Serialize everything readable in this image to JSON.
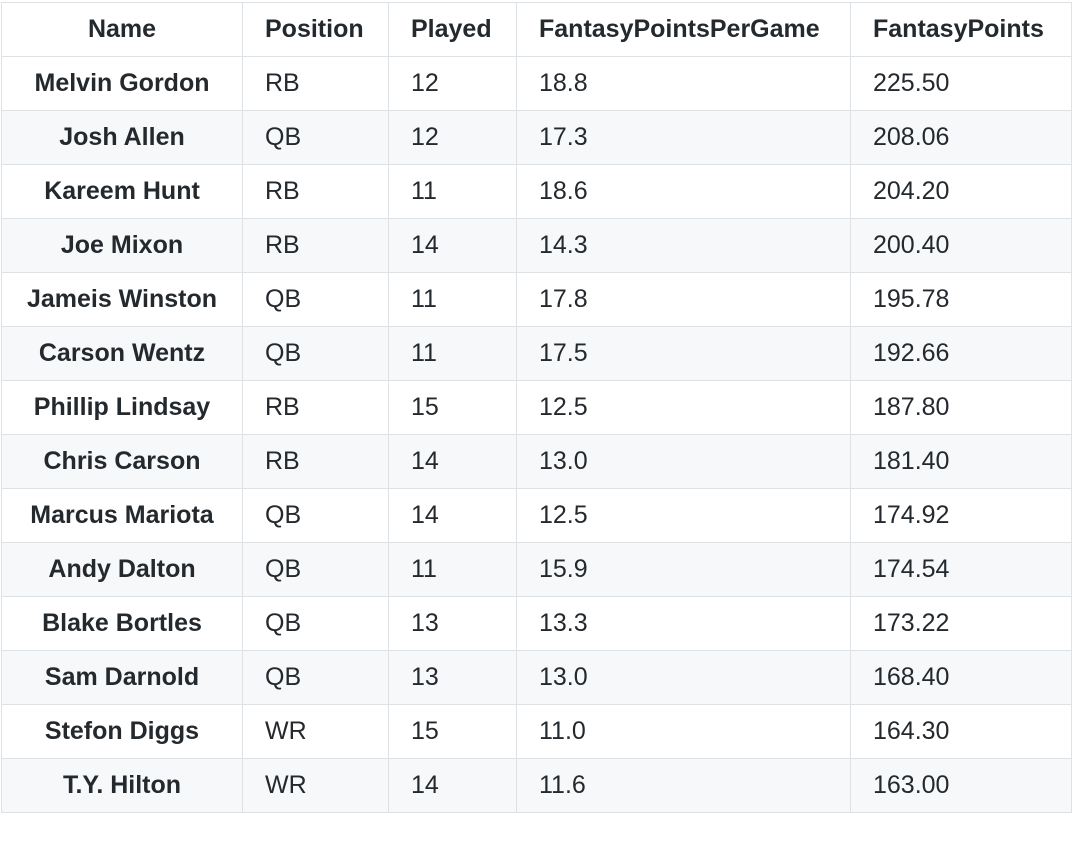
{
  "table": {
    "headers": {
      "name": "Name",
      "position": "Position",
      "played": "Played",
      "fppg": "FantasyPointsPerGame",
      "fp": "FantasyPoints"
    },
    "rows": [
      {
        "name": "Melvin Gordon",
        "position": "RB",
        "played": "12",
        "fppg": "18.8",
        "fp": "225.50"
      },
      {
        "name": "Josh Allen",
        "position": "QB",
        "played": "12",
        "fppg": "17.3",
        "fp": "208.06"
      },
      {
        "name": "Kareem Hunt",
        "position": "RB",
        "played": "11",
        "fppg": "18.6",
        "fp": "204.20"
      },
      {
        "name": "Joe Mixon",
        "position": "RB",
        "played": "14",
        "fppg": "14.3",
        "fp": "200.40"
      },
      {
        "name": "Jameis Winston",
        "position": "QB",
        "played": "11",
        "fppg": "17.8",
        "fp": "195.78"
      },
      {
        "name": "Carson Wentz",
        "position": "QB",
        "played": "11",
        "fppg": "17.5",
        "fp": "192.66"
      },
      {
        "name": "Phillip Lindsay",
        "position": "RB",
        "played": "15",
        "fppg": "12.5",
        "fp": "187.80"
      },
      {
        "name": "Chris Carson",
        "position": "RB",
        "played": "14",
        "fppg": "13.0",
        "fp": "181.40"
      },
      {
        "name": "Marcus Mariota",
        "position": "QB",
        "played": "14",
        "fppg": "12.5",
        "fp": "174.92"
      },
      {
        "name": "Andy Dalton",
        "position": "QB",
        "played": "11",
        "fppg": "15.9",
        "fp": "174.54"
      },
      {
        "name": "Blake Bortles",
        "position": "QB",
        "played": "13",
        "fppg": "13.3",
        "fp": "173.22"
      },
      {
        "name": "Sam Darnold",
        "position": "QB",
        "played": "13",
        "fppg": "13.0",
        "fp": "168.40"
      },
      {
        "name": "Stefon Diggs",
        "position": "WR",
        "played": "15",
        "fppg": "11.0",
        "fp": "164.30"
      },
      {
        "name": "T.Y. Hilton",
        "position": "WR",
        "played": "14",
        "fppg": "11.6",
        "fp": "163.00"
      }
    ]
  }
}
